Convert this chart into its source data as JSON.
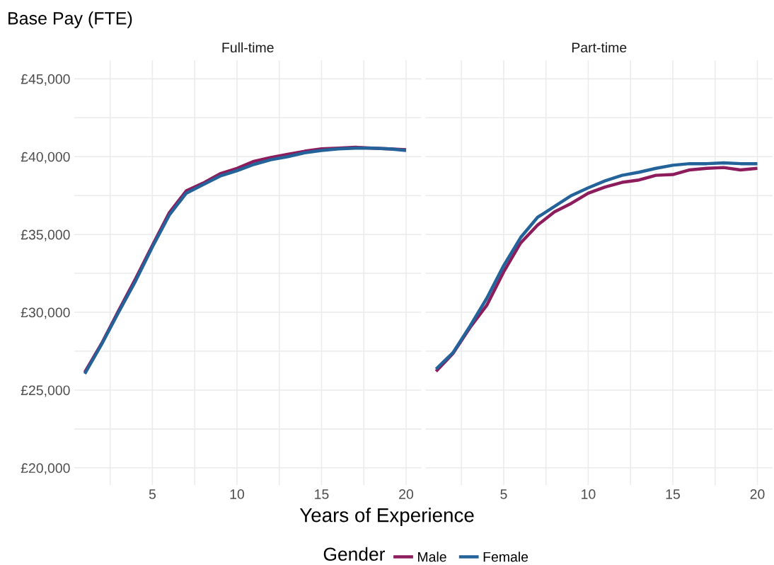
{
  "chart_data": [
    {
      "type": "line",
      "title": "Full-time",
      "annotations": [
        "Base Pay (FTE)"
      ],
      "xlabel": "Years of Experience",
      "legend_title": "Gender",
      "legend": "bottom",
      "grid": true,
      "x": [
        1,
        2,
        3,
        4,
        5,
        6,
        7,
        8,
        9,
        10,
        11,
        12,
        13,
        14,
        15,
        16,
        17,
        18,
        19,
        20
      ],
      "series": [
        {
          "name": "Male",
          "color": "#8c1c5c",
          "values": [
            26150,
            28000,
            30100,
            32150,
            34300,
            36400,
            37800,
            38300,
            38900,
            39250,
            39700,
            39950,
            40150,
            40350,
            40500,
            40550,
            40600,
            40550,
            40500,
            40450
          ]
        },
        {
          "name": "Female",
          "color": "#24639a",
          "values": [
            26050,
            27950,
            30000,
            32000,
            34200,
            36250,
            37650,
            38200,
            38750,
            39100,
            39500,
            39800,
            40000,
            40250,
            40400,
            40500,
            40550,
            40550,
            40500,
            40400
          ]
        }
      ],
      "xlim": [
        0.38,
        20.9
      ],
      "ylim": [
        18900,
        46200
      ],
      "xticks": [
        {
          "value": 2.5,
          "label": null
        },
        5,
        {
          "value": 7.5,
          "label": null
        },
        10,
        {
          "value": 12.5,
          "label": null
        },
        15,
        {
          "value": 17.5,
          "label": null
        },
        20
      ],
      "yticks": [
        {
          "value": 20000,
          "label": "£20,000"
        },
        {
          "value": 22500,
          "label": null
        },
        {
          "value": 25000,
          "label": "£25,000"
        },
        {
          "value": 27500,
          "label": null
        },
        {
          "value": 30000,
          "label": "£30,000"
        },
        {
          "value": 32500,
          "label": null
        },
        {
          "value": 35000,
          "label": "£35,000"
        },
        {
          "value": 37500,
          "label": null
        },
        {
          "value": 40000,
          "label": "£40,000"
        },
        {
          "value": 42500,
          "label": null
        },
        {
          "value": 45000,
          "label": "£45,000"
        }
      ]
    },
    {
      "type": "line",
      "title": "Part-time",
      "grid": true,
      "tick_labels": "x",
      "x": [
        1,
        2,
        3,
        4,
        5,
        6,
        7,
        8,
        9,
        10,
        11,
        12,
        13,
        14,
        15,
        16,
        17,
        18,
        19,
        20
      ],
      "series": [
        {
          "color": "#8c1c5c",
          "values": [
            26200,
            27350,
            29000,
            30450,
            32600,
            34450,
            35600,
            36450,
            37000,
            37650,
            38050,
            38350,
            38500,
            38800,
            38850,
            39150,
            39250,
            39300,
            39150,
            39250
          ]
        },
        {
          "color": "#24639a",
          "values": [
            26350,
            27400,
            29100,
            30900,
            33000,
            34800,
            36100,
            36800,
            37500,
            38000,
            38450,
            38800,
            39000,
            39250,
            39450,
            39550,
            39550,
            39600,
            39550,
            39550
          ]
        }
      ],
      "xlim": [
        0.38,
        20.9
      ],
      "ylim": [
        18900,
        46200
      ],
      "xticks": [
        {
          "value": 2.5,
          "label": null
        },
        5,
        {
          "value": 7.5,
          "label": null
        },
        10,
        {
          "value": 12.5,
          "label": null
        },
        15,
        {
          "value": 17.5,
          "label": null
        },
        20
      ],
      "yticks": [
        {
          "value": 20000,
          "label": null
        },
        {
          "value": 22500,
          "label": null
        },
        {
          "value": 25000,
          "label": null
        },
        {
          "value": 27500,
          "label": null
        },
        {
          "value": 30000,
          "label": null
        },
        {
          "value": 32500,
          "label": null
        },
        {
          "value": 35000,
          "label": null
        },
        {
          "value": 37500,
          "label": null
        },
        {
          "value": 40000,
          "label": null
        },
        {
          "value": 42500,
          "label": null
        },
        {
          "value": 45000,
          "label": null
        }
      ]
    }
  ]
}
